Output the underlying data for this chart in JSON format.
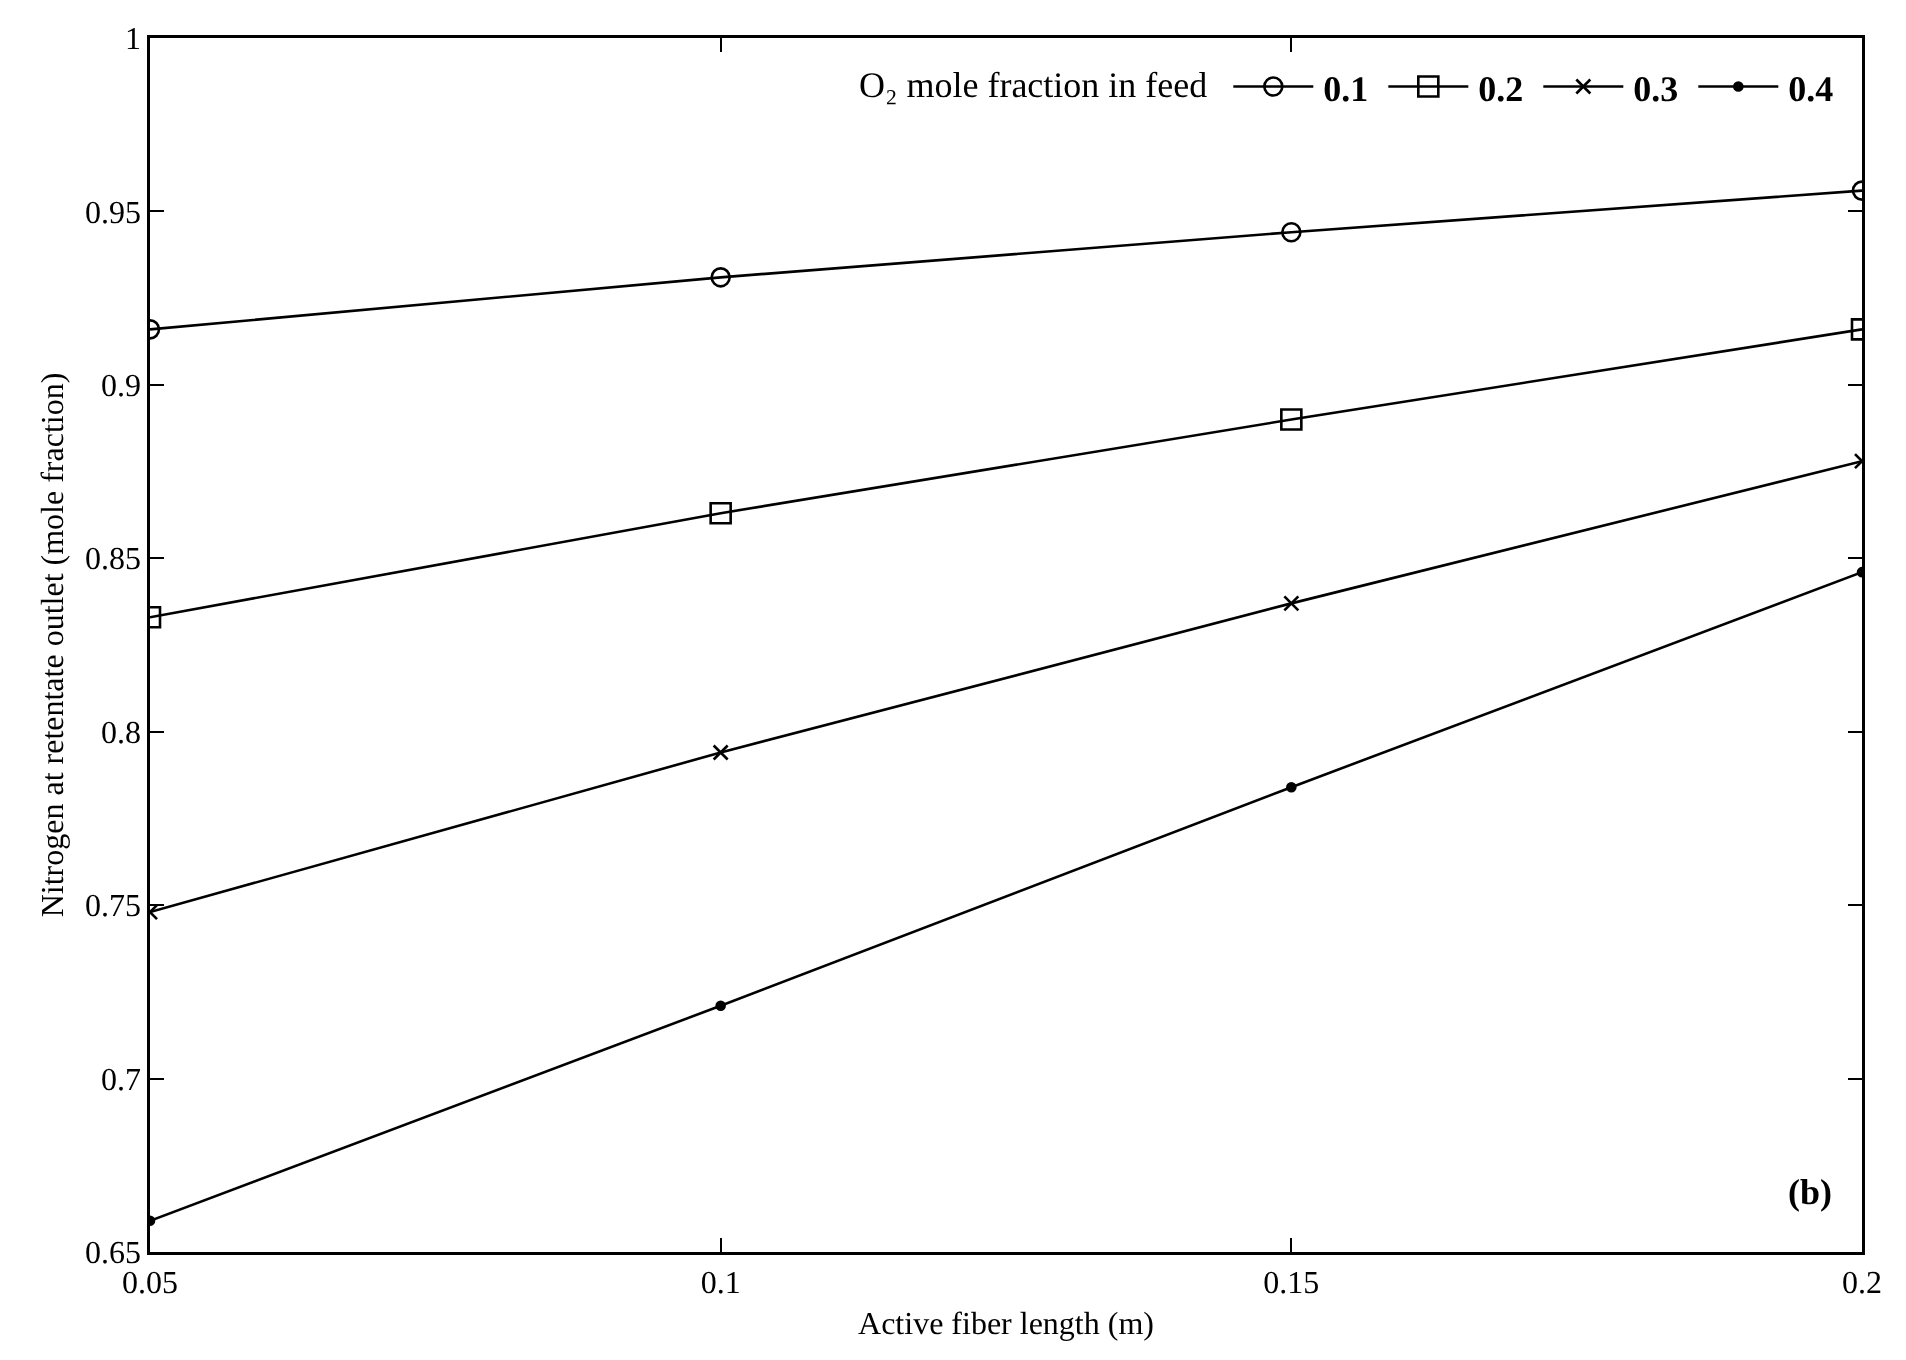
{
  "chart_data": {
    "type": "line",
    "xlabel": "Active fiber length (m)",
    "ylabel": "Nitrogen at retentate outlet (mole fraction)",
    "legend_title": "O₂ mole fraction in feed",
    "legend": "top right",
    "grid": false,
    "line_style": "solid",
    "x": [
      0.05,
      0.1,
      0.15,
      0.2
    ],
    "series": [
      {
        "name": "0.1",
        "color": "#000000",
        "marker": "circle",
        "values": [
          0.916,
          0.931,
          0.944,
          0.956
        ]
      },
      {
        "name": "0.2",
        "color": "#000000",
        "marker": "square",
        "values": [
          0.833,
          0.863,
          0.89,
          0.916
        ]
      },
      {
        "name": "0.3",
        "color": "#000000",
        "marker": "cross",
        "values": [
          0.748,
          0.794,
          0.837,
          0.878
        ]
      },
      {
        "name": "0.4",
        "color": "#000000",
        "marker": "dot",
        "values": [
          0.659,
          0.721,
          0.784,
          0.846
        ]
      }
    ],
    "xlim": [
      0.05,
      0.2
    ],
    "xticks": [
      0.05,
      0.1,
      0.15,
      0.2
    ],
    "ylim": [
      0.65,
      1
    ],
    "yticks": [
      0.65,
      0.7,
      0.75,
      0.8,
      0.85,
      0.9,
      0.95,
      1
    ],
    "annotations": [
      "(b)"
    ]
  }
}
